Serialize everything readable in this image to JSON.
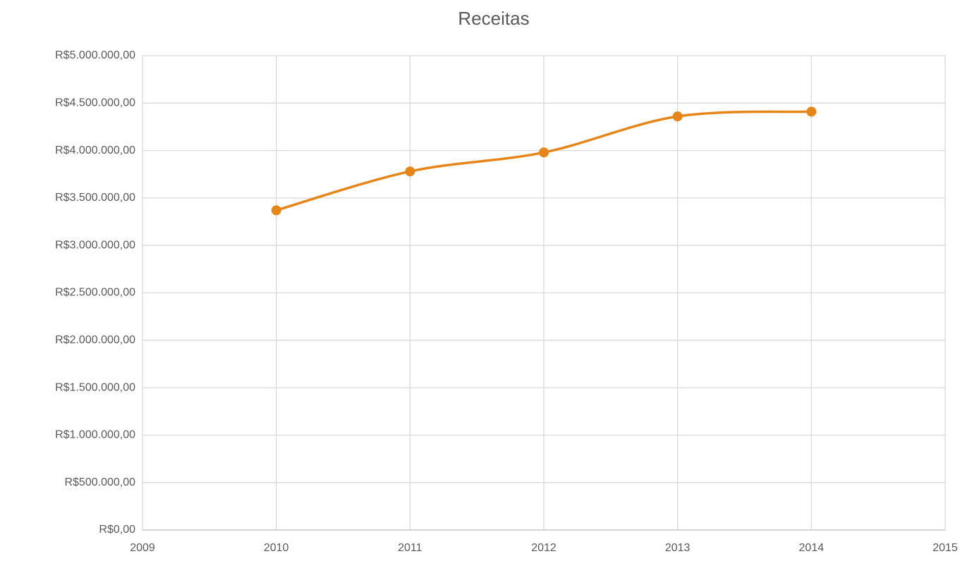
{
  "chart_data": {
    "type": "line",
    "title": "Receitas",
    "x": [
      2010,
      2011,
      2012,
      2013,
      2014
    ],
    "values": [
      3370000,
      3780000,
      3980000,
      4360000,
      4410000
    ],
    "color": "#e6861a",
    "smooth": true,
    "markers": true,
    "grid": true,
    "xlim": [
      2009,
      2015
    ],
    "xticks": [
      2009,
      2010,
      2011,
      2012,
      2013,
      2014,
      2015
    ],
    "ylim": [
      0,
      5000000
    ],
    "yticks": [
      {
        "value": 0,
        "label": "R$0,00"
      },
      {
        "value": 500000,
        "label": "R$500.000,00"
      },
      {
        "value": 1000000,
        "label": "R$1.000.000,00"
      },
      {
        "value": 1500000,
        "label": "R$1.500.000,00"
      },
      {
        "value": 2000000,
        "label": "R$2.000.000,00"
      },
      {
        "value": 2500000,
        "label": "R$2.500.000,00"
      },
      {
        "value": 3000000,
        "label": "R$3.000.000,00"
      },
      {
        "value": 3500000,
        "label": "R$3.500.000,00"
      },
      {
        "value": 4000000,
        "label": "R$4.000.000,00"
      },
      {
        "value": 4500000,
        "label": "R$4.500.000,00"
      },
      {
        "value": 5000000,
        "label": "R$5.000.000,00"
      }
    ]
  }
}
